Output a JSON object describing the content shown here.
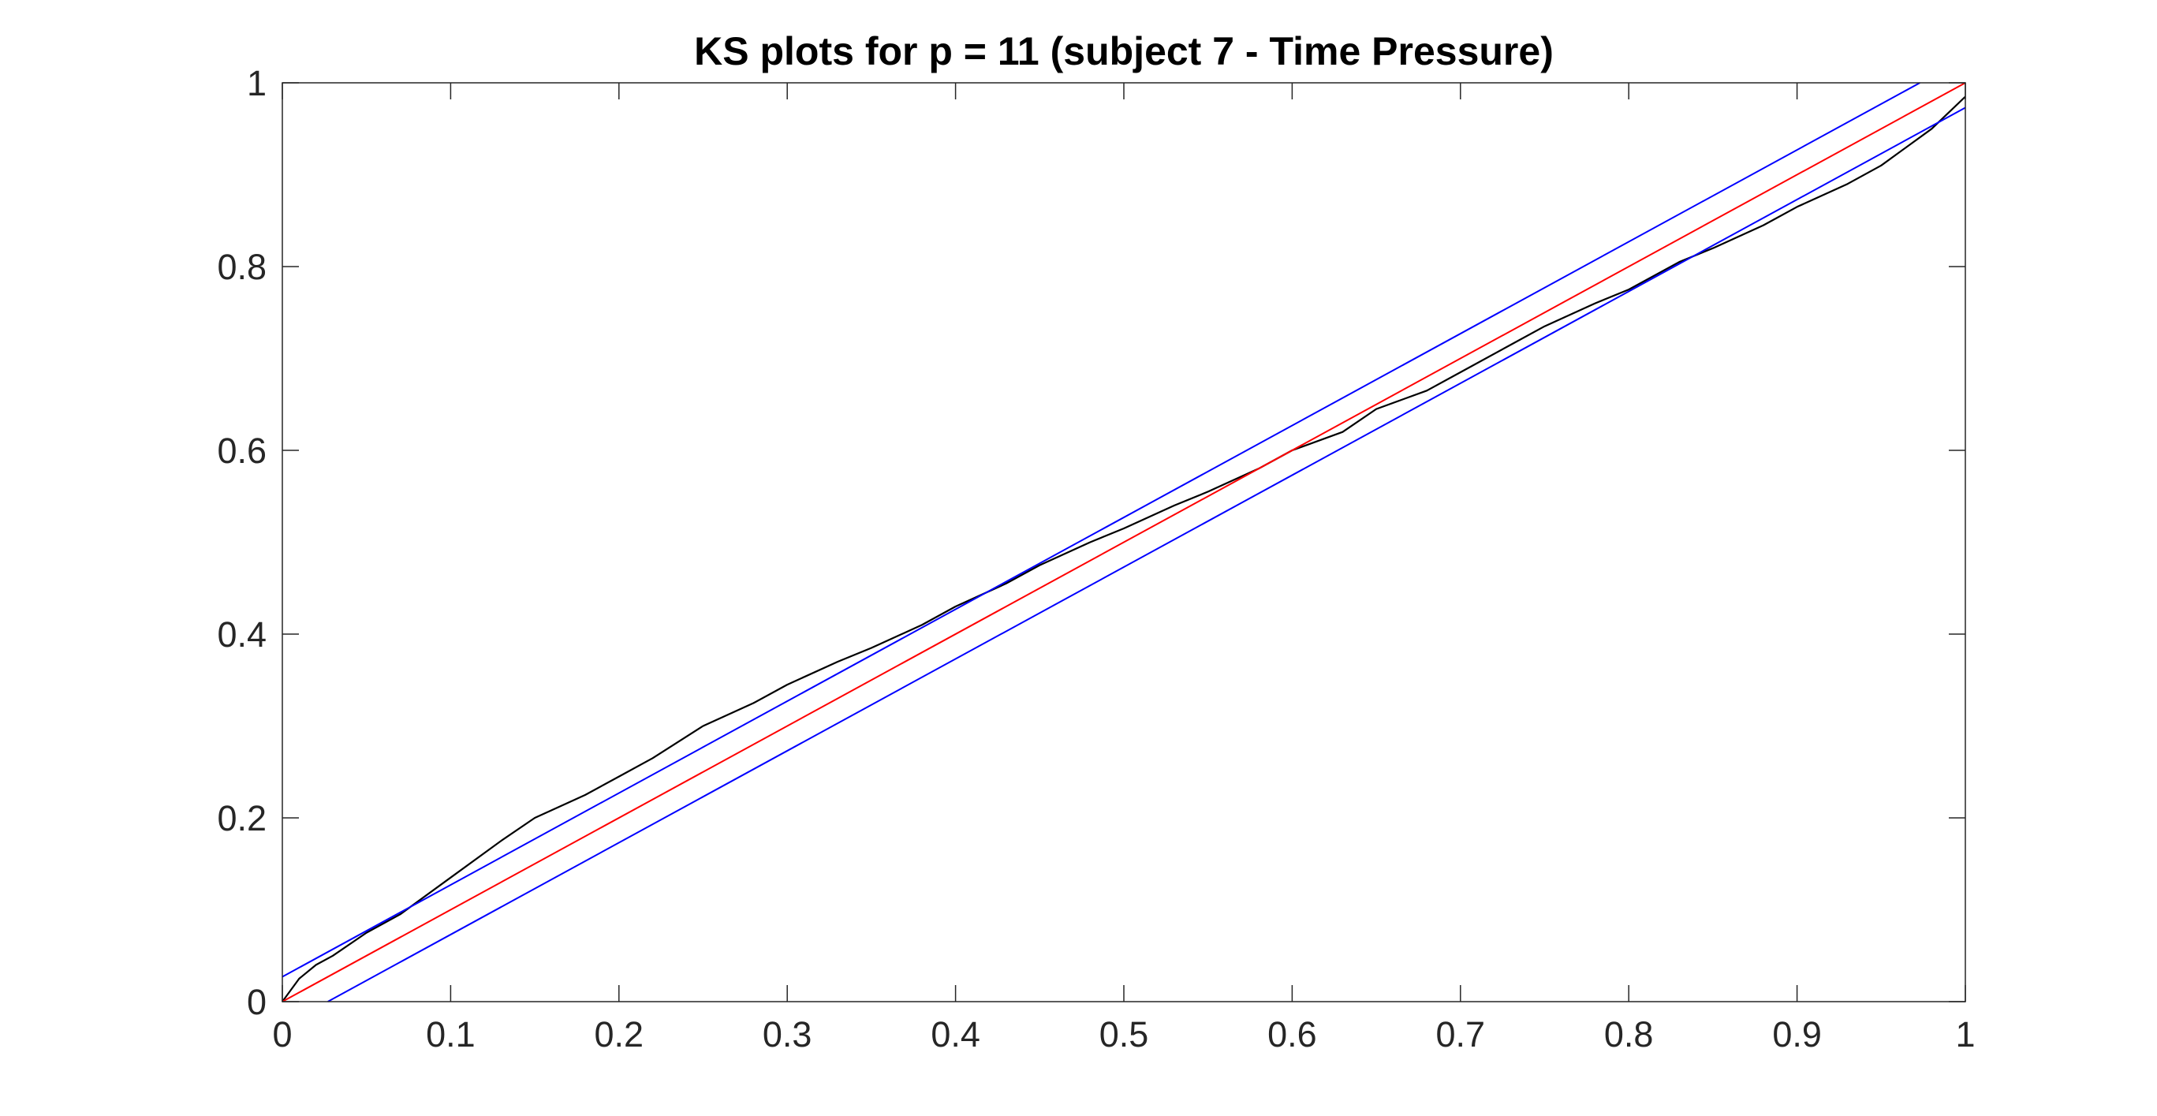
{
  "chart_data": {
    "type": "line",
    "title": "KS plots for p = 11 (subject 7 - Time Pressure)",
    "xlabel": "",
    "ylabel": "",
    "xlim": [
      0,
      1
    ],
    "ylim": [
      0,
      1
    ],
    "xticks": [
      "0",
      "0.1",
      "0.2",
      "0.3",
      "0.4",
      "0.5",
      "0.6",
      "0.7",
      "0.8",
      "0.9",
      "1"
    ],
    "yticks": [
      "0",
      "0.2",
      "0.4",
      "0.6",
      "0.8",
      "1"
    ],
    "grid": false,
    "legend": "none",
    "series": [
      {
        "color": "#000000",
        "x": [
          0,
          0.01,
          0.02,
          0.03,
          0.05,
          0.07,
          0.1,
          0.13,
          0.15,
          0.18,
          0.2,
          0.22,
          0.25,
          0.28,
          0.3,
          0.33,
          0.35,
          0.38,
          0.4,
          0.43,
          0.45,
          0.48,
          0.5,
          0.53,
          0.55,
          0.58,
          0.6,
          0.63,
          0.65,
          0.68,
          0.7,
          0.73,
          0.75,
          0.78,
          0.8,
          0.83,
          0.85,
          0.88,
          0.9,
          0.93,
          0.95,
          0.98,
          1
        ],
        "y": [
          0,
          0.025,
          0.04,
          0.05,
          0.075,
          0.095,
          0.135,
          0.175,
          0.2,
          0.225,
          0.245,
          0.265,
          0.3,
          0.325,
          0.345,
          0.37,
          0.385,
          0.41,
          0.43,
          0.455,
          0.475,
          0.5,
          0.515,
          0.54,
          0.555,
          0.58,
          0.6,
          0.62,
          0.645,
          0.665,
          0.685,
          0.715,
          0.735,
          0.76,
          0.775,
          0.805,
          0.82,
          0.845,
          0.865,
          0.89,
          0.91,
          0.95,
          0.985
        ]
      },
      {
        "color": "#ff0000",
        "x": [
          0,
          1
        ],
        "y": [
          0,
          1
        ]
      },
      {
        "color": "#0000ff",
        "x": [
          0,
          0.973
        ],
        "y": [
          0.027,
          1
        ]
      },
      {
        "color": "#0000ff",
        "x": [
          0.027,
          1
        ],
        "y": [
          0,
          0.973
        ]
      }
    ]
  }
}
